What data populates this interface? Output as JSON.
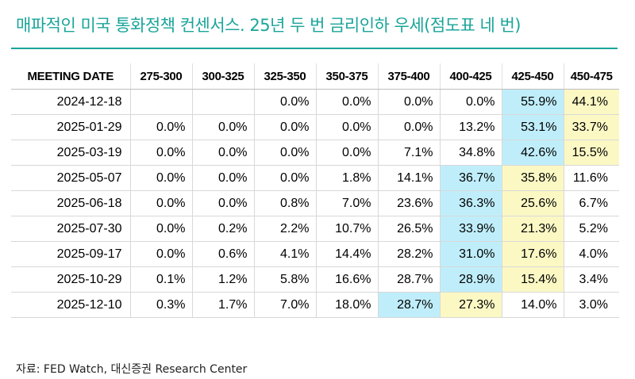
{
  "title": "매파적인 미국 통화정책 컨센서스. 25년 두 번 금리인하 우세(점도표 네 번)",
  "table": {
    "headers": [
      "MEETING DATE",
      "275-300",
      "300-325",
      "325-350",
      "350-375",
      "375-400",
      "400-425",
      "425-450",
      "450-475"
    ],
    "rows": [
      {
        "date": "2024-12-18",
        "cells": [
          "",
          "",
          "0.0%",
          "0.0%",
          "0.0%",
          "0.0%",
          "55.9%",
          "44.1%"
        ],
        "blue": 6,
        "yellow": 7
      },
      {
        "date": "2025-01-29",
        "cells": [
          "0.0%",
          "0.0%",
          "0.0%",
          "0.0%",
          "0.0%",
          "13.2%",
          "53.1%",
          "33.7%"
        ],
        "blue": 6,
        "yellow": 7
      },
      {
        "date": "2025-03-19",
        "cells": [
          "0.0%",
          "0.0%",
          "0.0%",
          "0.0%",
          "7.1%",
          "34.8%",
          "42.6%",
          "15.5%"
        ],
        "blue": 6,
        "yellow": 7
      },
      {
        "date": "2025-05-07",
        "cells": [
          "0.0%",
          "0.0%",
          "0.0%",
          "1.8%",
          "14.1%",
          "36.7%",
          "35.8%",
          "11.6%"
        ],
        "blue": 5,
        "yellow": 6
      },
      {
        "date": "2025-06-18",
        "cells": [
          "0.0%",
          "0.0%",
          "0.8%",
          "7.0%",
          "23.6%",
          "36.3%",
          "25.6%",
          "6.7%"
        ],
        "blue": 5,
        "yellow": 6
      },
      {
        "date": "2025-07-30",
        "cells": [
          "0.0%",
          "0.2%",
          "2.2%",
          "10.7%",
          "26.5%",
          "33.9%",
          "21.3%",
          "5.2%"
        ],
        "blue": 5,
        "yellow": 6
      },
      {
        "date": "2025-09-17",
        "cells": [
          "0.0%",
          "0.6%",
          "4.1%",
          "14.4%",
          "28.2%",
          "31.0%",
          "17.6%",
          "4.0%"
        ],
        "blue": 5,
        "yellow": 6
      },
      {
        "date": "2025-10-29",
        "cells": [
          "0.1%",
          "1.2%",
          "5.8%",
          "16.6%",
          "28.7%",
          "28.9%",
          "15.4%",
          "3.4%"
        ],
        "blue": 5,
        "yellow": 6
      },
      {
        "date": "2025-12-10",
        "cells": [
          "0.3%",
          "1.7%",
          "7.0%",
          "18.0%",
          "28.7%",
          "27.3%",
          "14.0%",
          "3.0%"
        ],
        "blue": 4,
        "yellow": 5
      }
    ]
  },
  "colors": {
    "accent": "#1aa59a",
    "highlight_blue": "#bfeefa",
    "highlight_yellow": "#fbf8c4"
  },
  "source": "자료: FED Watch, 대신증권 Research Center"
}
